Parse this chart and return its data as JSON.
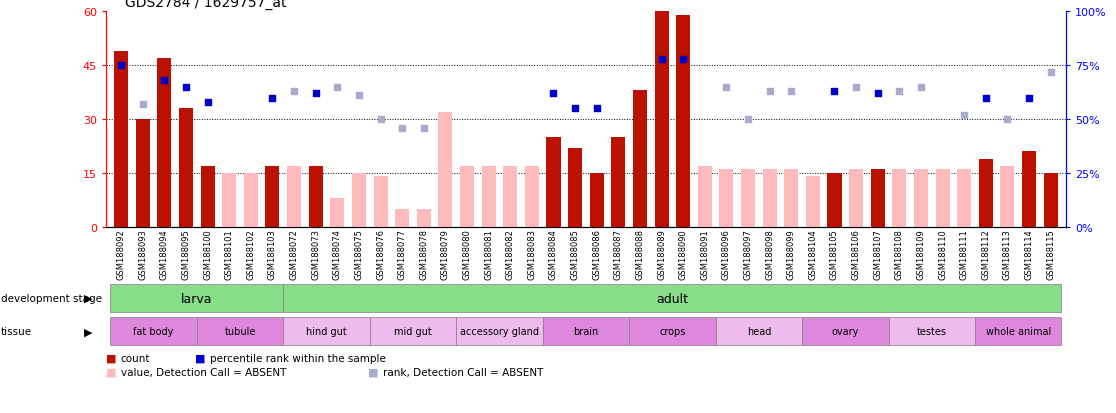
{
  "title": "GDS2784 / 1629757_at",
  "samples": [
    "GSM188092",
    "GSM188093",
    "GSM188094",
    "GSM188095",
    "GSM188100",
    "GSM188101",
    "GSM188102",
    "GSM188103",
    "GSM188072",
    "GSM188073",
    "GSM188074",
    "GSM188075",
    "GSM188076",
    "GSM188077",
    "GSM188078",
    "GSM188079",
    "GSM188080",
    "GSM188081",
    "GSM188082",
    "GSM188083",
    "GSM188084",
    "GSM188085",
    "GSM188086",
    "GSM188087",
    "GSM188088",
    "GSM188089",
    "GSM188090",
    "GSM188091",
    "GSM188096",
    "GSM188097",
    "GSM188098",
    "GSM188099",
    "GSM188104",
    "GSM188105",
    "GSM188106",
    "GSM188107",
    "GSM188108",
    "GSM188109",
    "GSM188110",
    "GSM188111",
    "GSM188112",
    "GSM188113",
    "GSM188114",
    "GSM188115"
  ],
  "counts": [
    49,
    30,
    47,
    33,
    17,
    null,
    null,
    17,
    null,
    17,
    null,
    null,
    null,
    null,
    null,
    null,
    null,
    null,
    null,
    null,
    25,
    22,
    15,
    25,
    38,
    60,
    59,
    null,
    null,
    null,
    null,
    null,
    null,
    15,
    null,
    16,
    null,
    null,
    null,
    null,
    19,
    null,
    21,
    15
  ],
  "absent_counts": [
    null,
    null,
    null,
    null,
    null,
    15,
    15,
    null,
    17,
    null,
    8,
    15,
    14,
    5,
    5,
    32,
    17,
    17,
    17,
    17,
    null,
    null,
    null,
    null,
    null,
    null,
    null,
    17,
    16,
    16,
    16,
    16,
    14,
    null,
    16,
    null,
    16,
    16,
    16,
    16,
    null,
    17,
    null,
    null
  ],
  "ranks": [
    75,
    null,
    68,
    65,
    58,
    null,
    null,
    60,
    null,
    62,
    null,
    null,
    null,
    null,
    null,
    null,
    null,
    null,
    null,
    null,
    62,
    55,
    55,
    null,
    null,
    78,
    78,
    null,
    null,
    null,
    null,
    null,
    null,
    63,
    null,
    62,
    null,
    null,
    null,
    null,
    60,
    null,
    60,
    null
  ],
  "absent_ranks": [
    null,
    57,
    null,
    null,
    null,
    null,
    null,
    null,
    63,
    null,
    65,
    61,
    50,
    46,
    46,
    null,
    null,
    null,
    null,
    null,
    null,
    null,
    null,
    null,
    null,
    null,
    null,
    null,
    65,
    50,
    63,
    63,
    null,
    null,
    65,
    null,
    63,
    65,
    null,
    52,
    null,
    50,
    null,
    72
  ],
  "dev_stage_groups": [
    {
      "label": "larva",
      "start": 0,
      "end": 8
    },
    {
      "label": "adult",
      "start": 8,
      "end": 44
    }
  ],
  "tissue_groups": [
    {
      "label": "fat body",
      "start": 0,
      "end": 4,
      "color": "#dd88dd"
    },
    {
      "label": "tubule",
      "start": 4,
      "end": 8,
      "color": "#dd88dd"
    },
    {
      "label": "hind gut",
      "start": 8,
      "end": 12,
      "color": "#eebbee"
    },
    {
      "label": "mid gut",
      "start": 12,
      "end": 16,
      "color": "#eebbee"
    },
    {
      "label": "accessory gland",
      "start": 16,
      "end": 20,
      "color": "#eebbee"
    },
    {
      "label": "brain",
      "start": 20,
      "end": 24,
      "color": "#dd88dd"
    },
    {
      "label": "crops",
      "start": 24,
      "end": 28,
      "color": "#dd88dd"
    },
    {
      "label": "head",
      "start": 28,
      "end": 32,
      "color": "#eebbee"
    },
    {
      "label": "ovary",
      "start": 32,
      "end": 36,
      "color": "#dd88dd"
    },
    {
      "label": "testes",
      "start": 36,
      "end": 40,
      "color": "#eebbee"
    },
    {
      "label": "whole animal",
      "start": 40,
      "end": 44,
      "color": "#dd88dd"
    }
  ],
  "left_ylim": [
    0,
    60
  ],
  "left_yticks": [
    0,
    15,
    30,
    45,
    60
  ],
  "right_ylim": [
    0,
    100
  ],
  "right_yticks": [
    0,
    25,
    50,
    75,
    100
  ],
  "bar_color": "#bb1100",
  "absent_bar_color": "#ffbbbb",
  "rank_color": "#0000cc",
  "absent_rank_color": "#aaaacc",
  "dev_color": "#88dd88",
  "plot_bg": "#ffffff"
}
